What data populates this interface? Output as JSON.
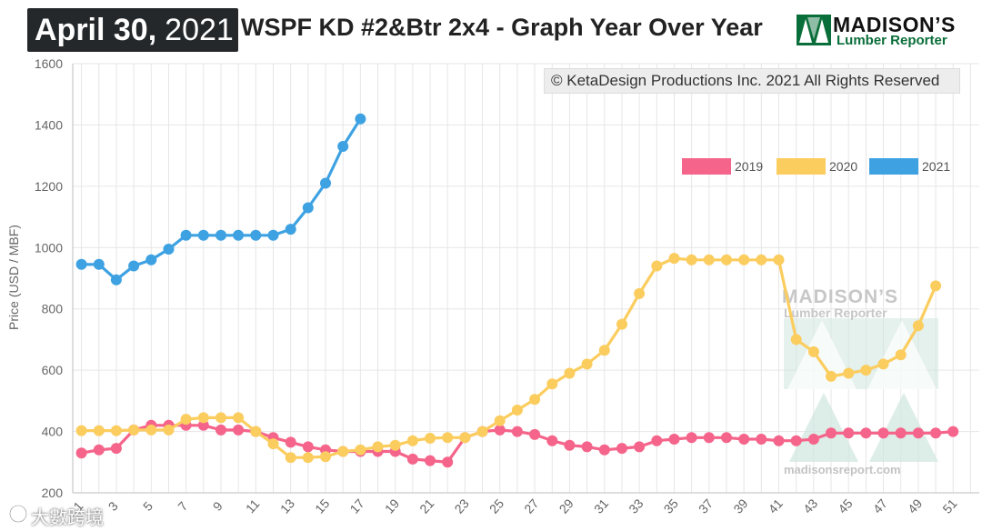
{
  "header": {
    "date_main": "April 30,",
    "date_year": "2021",
    "title": "WSPF KD #2&Btr 2x4 - Graph Year Over Year",
    "logo_name": "MADISON’S",
    "logo_sub": "Lumber Reporter"
  },
  "copyright": "© KetaDesign Productions Inc. 2021 All Rights Reserved",
  "chart_watermark": {
    "name": "MADISON’S",
    "sub": "Lumber Reporter",
    "url": "madisonsreport.com"
  },
  "image_watermark": "大數跨境",
  "colors": {
    "2019": "#f5648a",
    "2020": "#fbcd5f",
    "2021": "#3ea2e2",
    "grid": "#e6e6e6",
    "axis_text": "#666666",
    "brand_green": "#0a6e3a"
  },
  "chart_data": {
    "type": "line",
    "title": "WSPF KD #2&Btr 2x4 - Graph Year Over Year",
    "xlabel": "",
    "ylabel": "Price (USD / MBF)",
    "ylim": [
      200,
      1600
    ],
    "yticks": [
      200,
      400,
      600,
      800,
      1000,
      1200,
      1400,
      1600
    ],
    "xlim": [
      1,
      52
    ],
    "xticks": [
      1,
      3,
      5,
      7,
      9,
      11,
      13,
      15,
      17,
      19,
      21,
      23,
      25,
      27,
      29,
      31,
      33,
      35,
      37,
      39,
      41,
      43,
      45,
      47,
      49,
      51
    ],
    "legend_position": "top-right",
    "grid": true,
    "series": [
      {
        "name": "2019",
        "x": [
          1,
          2,
          3,
          4,
          5,
          6,
          7,
          8,
          9,
          10,
          11,
          12,
          13,
          14,
          15,
          16,
          17,
          18,
          19,
          20,
          21,
          22,
          23,
          24,
          25,
          26,
          27,
          28,
          29,
          30,
          31,
          32,
          33,
          34,
          35,
          36,
          37,
          38,
          39,
          40,
          41,
          42,
          43,
          44,
          45,
          46,
          47,
          48,
          49,
          50,
          51
        ],
        "values": [
          330,
          340,
          345,
          405,
          420,
          420,
          420,
          420,
          405,
          405,
          400,
          380,
          365,
          350,
          340,
          335,
          335,
          335,
          335,
          310,
          305,
          300,
          380,
          400,
          405,
          400,
          390,
          370,
          355,
          350,
          340,
          345,
          350,
          370,
          375,
          380,
          380,
          380,
          375,
          375,
          370,
          370,
          375,
          395,
          395,
          395,
          395,
          395,
          395,
          395,
          400
        ]
      },
      {
        "name": "2020",
        "x": [
          1,
          2,
          3,
          4,
          5,
          6,
          7,
          8,
          9,
          10,
          11,
          12,
          13,
          14,
          15,
          16,
          17,
          18,
          19,
          20,
          21,
          22,
          23,
          24,
          25,
          26,
          27,
          28,
          29,
          30,
          31,
          32,
          33,
          34,
          35,
          36,
          37,
          38,
          39,
          40,
          41,
          42,
          43,
          44,
          45,
          46,
          47,
          48,
          49,
          50,
          51
        ],
        "values": [
          403,
          403,
          403,
          405,
          405,
          405,
          440,
          445,
          445,
          445,
          400,
          360,
          315,
          315,
          318,
          335,
          340,
          350,
          355,
          370,
          378,
          380,
          380,
          400,
          435,
          470,
          505,
          555,
          590,
          620,
          665,
          750,
          850,
          940,
          965,
          960,
          960,
          960,
          960,
          960,
          960,
          700,
          660,
          580,
          590,
          600,
          620,
          650,
          745,
          875,
          null
        ]
      },
      {
        "name": "2021",
        "x": [
          1,
          2,
          3,
          4,
          5,
          6,
          7,
          8,
          9,
          10,
          11,
          12,
          13,
          14,
          15,
          16,
          17
        ],
        "values": [
          945,
          945,
          895,
          940,
          960,
          995,
          1040,
          1040,
          1040,
          1040,
          1040,
          1040,
          1060,
          1130,
          1210,
          1330,
          1420
        ]
      }
    ]
  }
}
